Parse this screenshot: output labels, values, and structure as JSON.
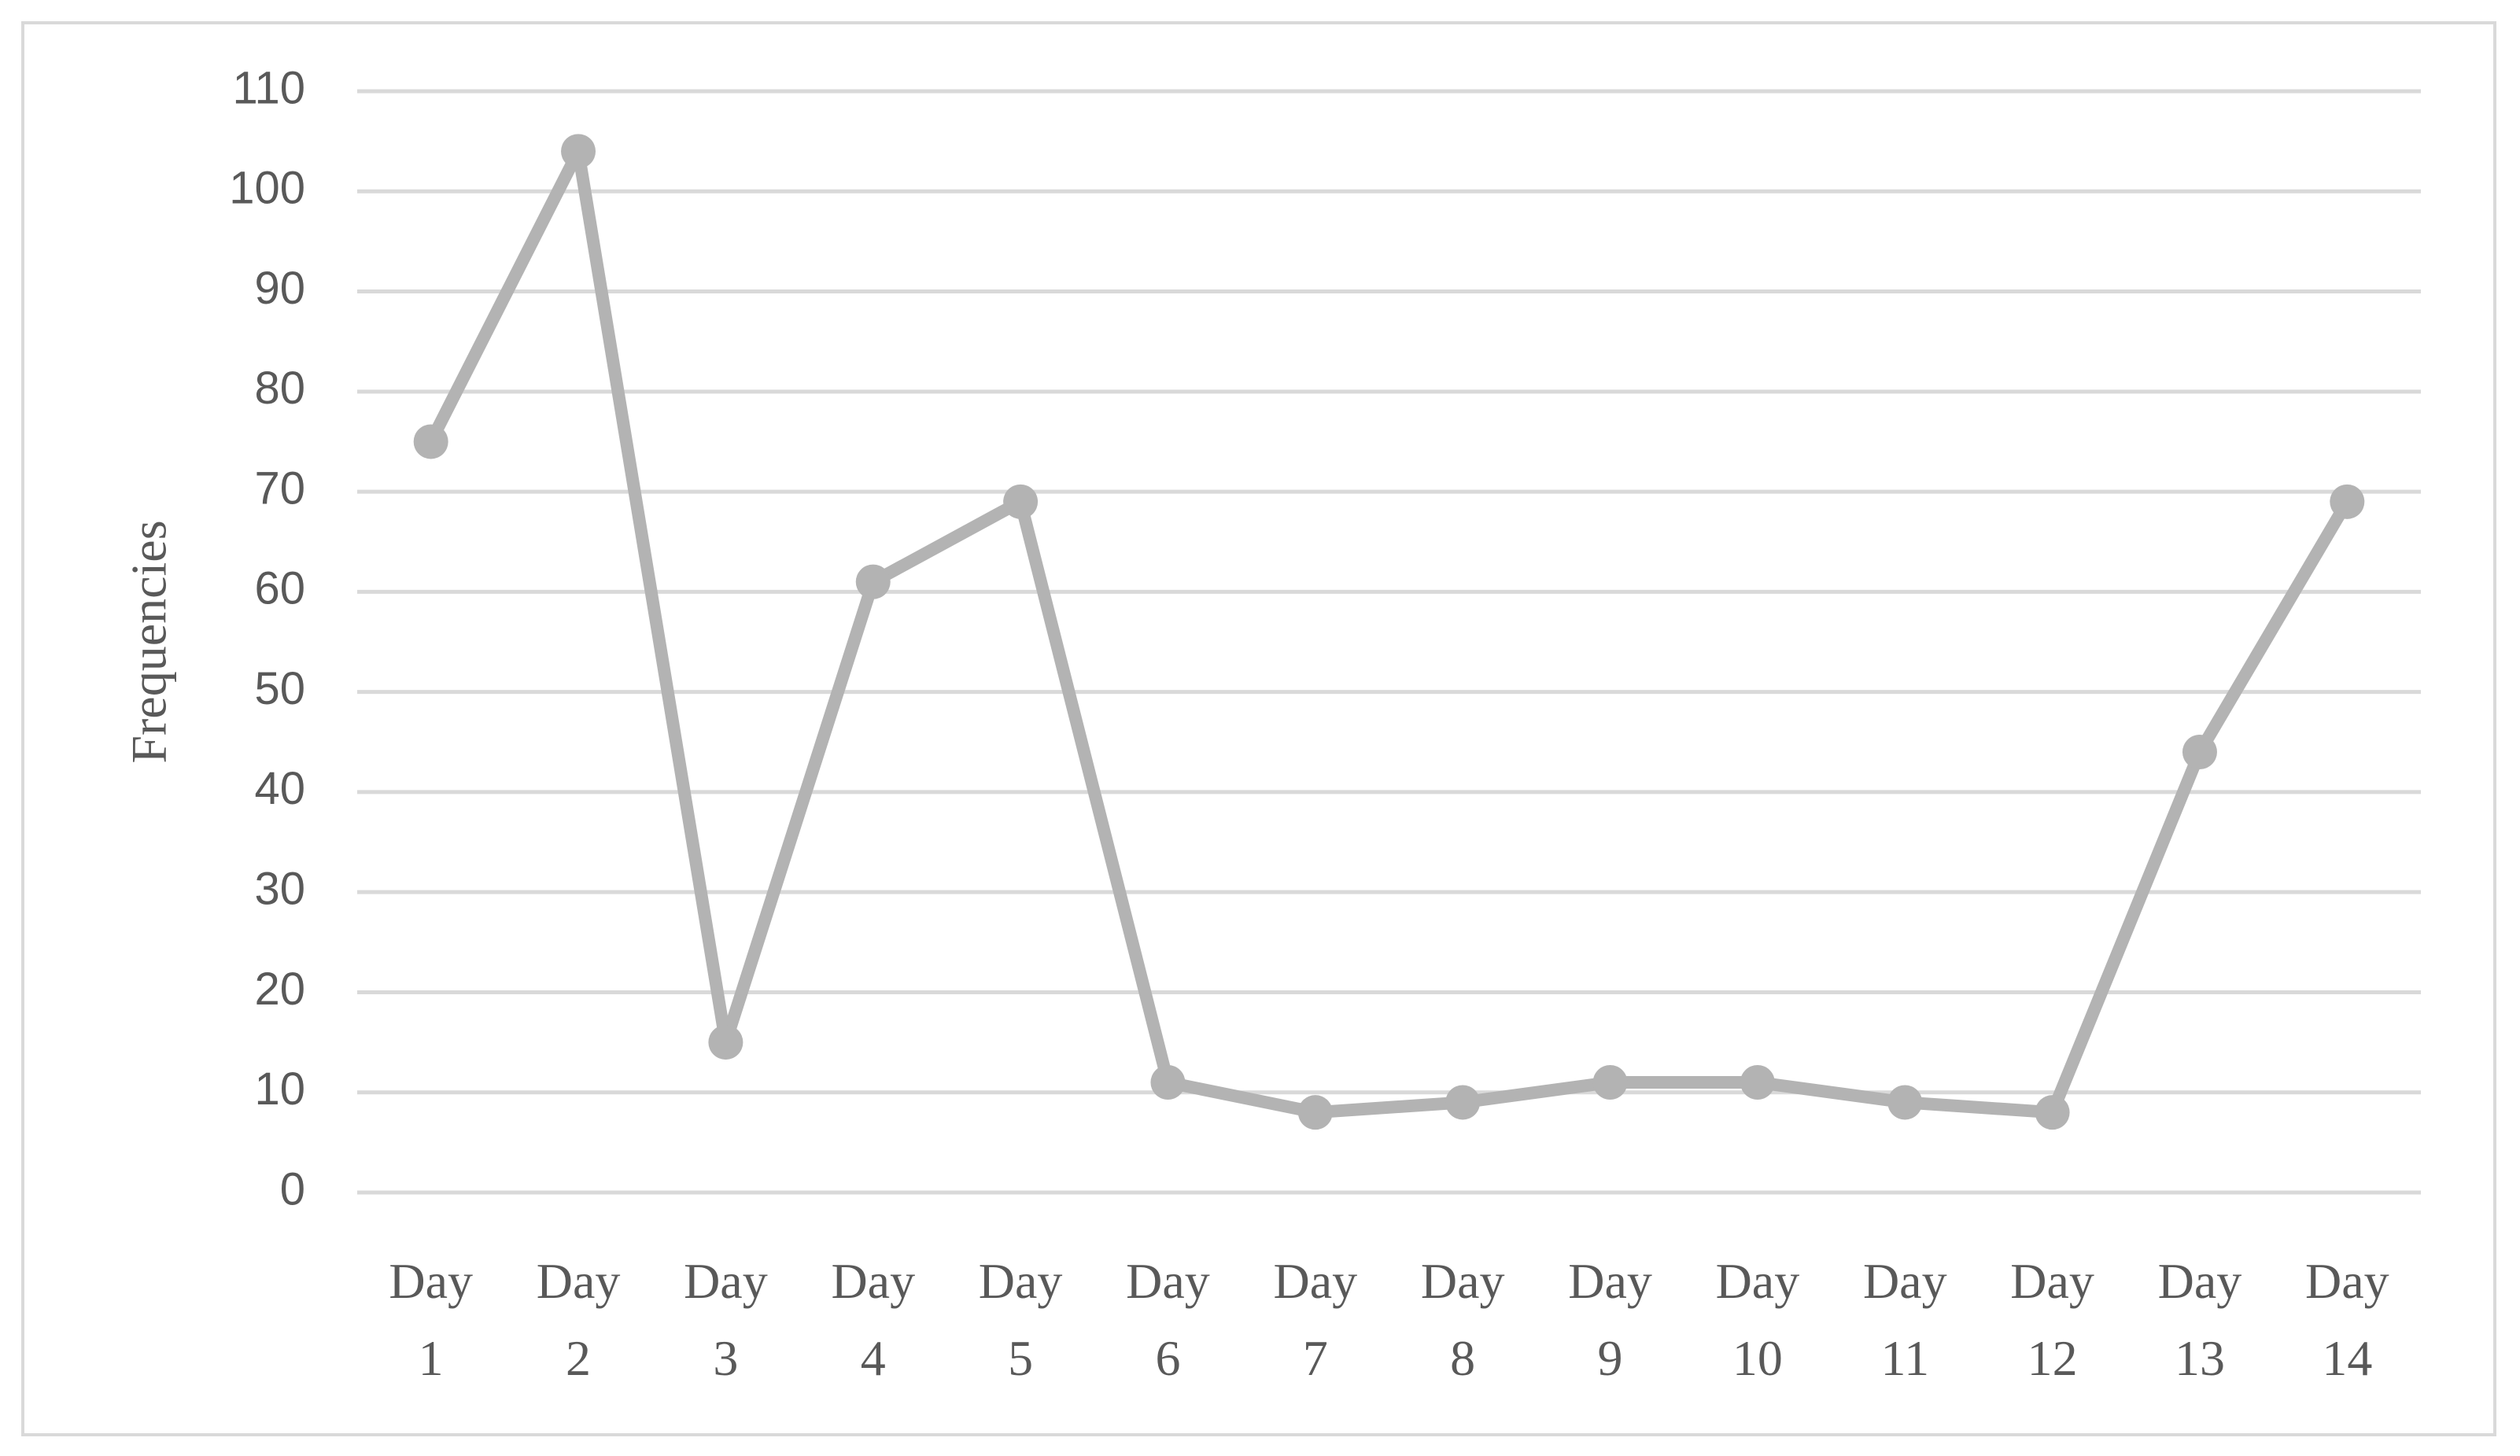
{
  "chart_data": {
    "type": "line",
    "y_label": "Frequencies",
    "categories": [
      "Day 1",
      "Day 2",
      "Day 3",
      "Day 4",
      "Day 5",
      "Day 6",
      "Day 7",
      "Day 8",
      "Day 9",
      "Day 10",
      "Day 11",
      "Day 12",
      "Day 13",
      "Day 14"
    ],
    "values": [
      75,
      104,
      15,
      61,
      69,
      11,
      8,
      9,
      11,
      11,
      9,
      8,
      44,
      69
    ],
    "color": "#b3b3b3",
    "ylim": [
      0,
      110
    ],
    "yticks": [
      0,
      10,
      20,
      30,
      40,
      50,
      60,
      70,
      80,
      90,
      100,
      110
    ],
    "grid": true,
    "markers": true
  }
}
